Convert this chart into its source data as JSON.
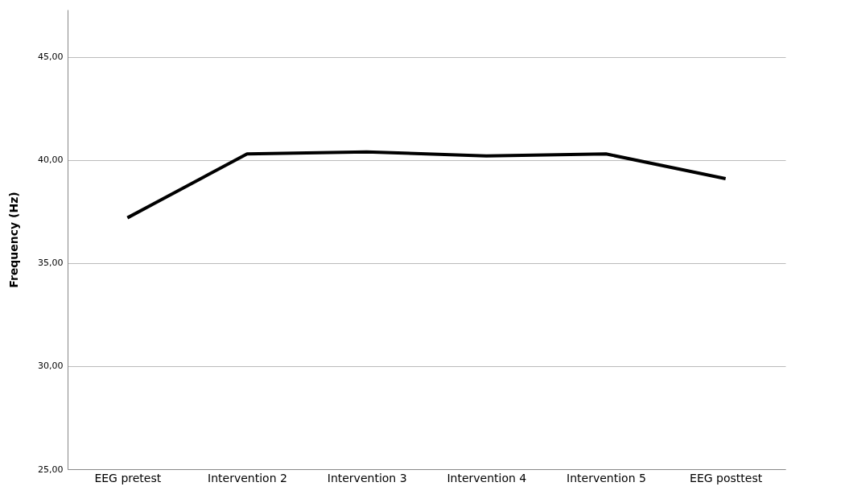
{
  "chart_data": {
    "type": "line",
    "ylabel": "Frequency (Hz)",
    "categories": [
      "EEG pretest",
      "Intervention 2",
      "Intervention 3",
      "Intervention 4",
      "Intervention 5",
      "EEG posttest"
    ],
    "series": [
      {
        "color": "#000000",
        "values": [
          37.2,
          40.3,
          40.4,
          40.2,
          40.3,
          39.1
        ]
      }
    ],
    "ylim": [
      25,
      47.3
    ],
    "yticks": [
      {
        "value": 25,
        "label": "25,00"
      },
      {
        "value": 30,
        "label": "30,00"
      },
      {
        "value": 35,
        "label": "35,00"
      },
      {
        "value": 40,
        "label": "40,00"
      },
      {
        "value": 45,
        "label": "45,00"
      }
    ],
    "grid": "y",
    "legend": false
  }
}
